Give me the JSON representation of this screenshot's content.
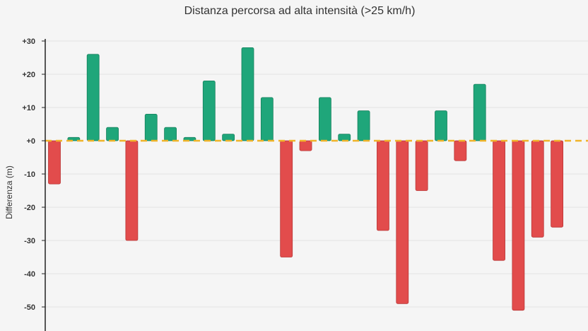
{
  "chart_data": {
    "type": "bar",
    "title": "Distanza percorsa ad alta intensità (>25 km/h)",
    "xlabel": "",
    "ylabel": "Differenza (m)",
    "ylim": [
      -55,
      30
    ],
    "yticks": [
      30,
      20,
      10,
      0,
      -10,
      -20,
      -30,
      -40,
      -50
    ],
    "ytick_labels": [
      "+30",
      "+20",
      "+10",
      "+0",
      "-10",
      "-20",
      "-30",
      "-40",
      "-50"
    ],
    "values": [
      -13,
      1,
      26,
      4,
      -30,
      8,
      4,
      1,
      18,
      2,
      28,
      13,
      -35,
      -3,
      13,
      2,
      9,
      -27,
      -49,
      -15,
      9,
      -6,
      17,
      -36,
      -51,
      -29,
      -26
    ],
    "grid": true,
    "reference_line": 0,
    "colors": {
      "positive": "#1fa67a",
      "negative": "#e24c4c",
      "reference_line": "#f0b429",
      "grid": "#e2e2e2",
      "axis": "#222222",
      "background": "#f5f5f5"
    }
  }
}
